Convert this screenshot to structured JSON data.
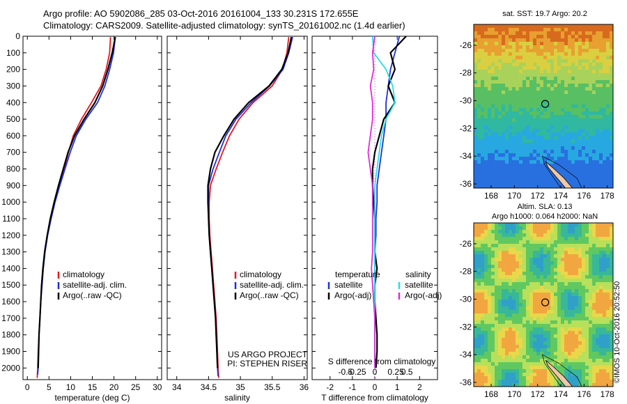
{
  "header": {
    "line1": "Argo profile: AO 5902086_285 03-Oct-2016 20161004_133 30.231S 172.655E",
    "line2": "Climatology: CARS2009. Satellite-adjusted climatology: synTS_20161002.nc (1.4d earlier)"
  },
  "colors": {
    "clim": "#e8141e",
    "sat": "#1f2fd8",
    "argo": "#000000",
    "sat_sal": "#22e0e6",
    "argo_sal": "#e02ad8"
  },
  "chart_data": [
    {
      "type": "line",
      "id": "temperature",
      "xlabel": "temperature (deg C)",
      "xlim": [
        -1,
        31
      ],
      "xticks": [
        0,
        5,
        10,
        15,
        20,
        25,
        30
      ],
      "ylim": [
        0,
        2070
      ],
      "yticks": [
        0,
        100,
        200,
        300,
        400,
        500,
        600,
        700,
        800,
        900,
        1000,
        1100,
        1200,
        1300,
        1400,
        1500,
        1600,
        1700,
        1800,
        1900,
        2000
      ],
      "legend": [
        "climatology",
        "satellite-adj. clim.",
        "Argo(..raw -QC)"
      ],
      "series": [
        {
          "name": "climatology",
          "color": "clim",
          "x": [
            19.2,
            19.0,
            18.2,
            17.0,
            14.8,
            12.5,
            10.6,
            9.5,
            8.5,
            7.3,
            6.3,
            5.4,
            4.6,
            4.0,
            3.6,
            3.3,
            3.1,
            2.9,
            2.7,
            2.5,
            2.4,
            2.3,
            2.3
          ],
          "y": [
            5,
            100,
            200,
            300,
            400,
            500,
            600,
            700,
            800,
            900,
            1000,
            1100,
            1200,
            1300,
            1400,
            1500,
            1600,
            1700,
            1800,
            1900,
            2000,
            2050,
            2060
          ]
        },
        {
          "name": "satellite-adj. clim.",
          "color": "sat",
          "x": [
            20.3,
            19.9,
            19.0,
            17.9,
            16.2,
            13.5,
            11.3,
            9.9,
            8.7,
            7.5,
            6.4,
            5.5,
            4.7,
            4.1,
            3.7,
            3.4,
            3.1,
            2.9,
            2.7,
            2.6,
            2.5,
            2.4
          ],
          "y": [
            5,
            100,
            200,
            300,
            400,
            500,
            600,
            700,
            800,
            900,
            1000,
            1100,
            1200,
            1300,
            1400,
            1500,
            1600,
            1700,
            1800,
            1900,
            2000,
            2040
          ]
        },
        {
          "name": "Argo(..raw -QC)",
          "color": "argo",
          "x": [
            20.3,
            19.6,
            18.6,
            17.4,
            15.6,
            13.1,
            10.9,
            9.4,
            8.3,
            7.2,
            6.2,
            5.3,
            4.6,
            4.0,
            3.6,
            3.3,
            3.1,
            2.9,
            2.7,
            2.6,
            2.5
          ],
          "y": [
            5,
            100,
            200,
            300,
            400,
            500,
            600,
            700,
            800,
            900,
            1000,
            1100,
            1200,
            1300,
            1400,
            1500,
            1600,
            1700,
            1800,
            1900,
            2000
          ]
        }
      ]
    },
    {
      "type": "line",
      "id": "salinity",
      "xlabel": "salinity",
      "xlim": [
        33.85,
        36.05
      ],
      "xticks": [
        34,
        34.5,
        35,
        35.5,
        36
      ],
      "ylim": [
        0,
        2070
      ],
      "legend": [
        "climatology",
        "satellite-adj. clim.",
        "Argo(..raw -QC)"
      ],
      "series": [
        {
          "name": "climatology",
          "color": "clim",
          "x": [
            35.76,
            35.73,
            35.66,
            35.5,
            35.2,
            34.98,
            34.83,
            34.72,
            34.62,
            34.53,
            34.51,
            34.51,
            34.52,
            34.54,
            34.56,
            34.58,
            34.6,
            34.62,
            34.63,
            34.64,
            34.65,
            34.66
          ],
          "y": [
            5,
            100,
            200,
            300,
            400,
            500,
            600,
            700,
            800,
            900,
            1000,
            1100,
            1200,
            1300,
            1400,
            1500,
            1600,
            1700,
            1800,
            1900,
            2000,
            2060
          ]
        },
        {
          "name": "satellite-adj. clim.",
          "color": "sat",
          "x": [
            35.82,
            35.76,
            35.67,
            35.46,
            35.17,
            34.93,
            34.77,
            34.67,
            34.57,
            34.5,
            34.5,
            34.5,
            34.51,
            34.53,
            34.55,
            34.57,
            34.59,
            34.61,
            34.62,
            34.63,
            34.64,
            34.65
          ],
          "y": [
            5,
            100,
            200,
            300,
            400,
            500,
            600,
            700,
            800,
            900,
            1000,
            1100,
            1200,
            1300,
            1400,
            1500,
            1600,
            1700,
            1800,
            1900,
            2000,
            2050
          ]
        },
        {
          "name": "Argo(..raw -QC)",
          "color": "argo",
          "x": [
            35.8,
            35.75,
            35.65,
            35.45,
            35.13,
            34.9,
            34.74,
            34.6,
            34.53,
            34.49,
            34.49,
            34.5,
            34.51,
            34.53,
            34.55,
            34.57,
            34.59,
            34.61,
            34.62,
            34.63,
            34.64
          ],
          "y": [
            5,
            100,
            200,
            300,
            400,
            500,
            600,
            700,
            800,
            900,
            1000,
            1100,
            1200,
            1300,
            1400,
            1500,
            1600,
            1700,
            1800,
            1900,
            2000
          ]
        }
      ],
      "annotation": [
        "US ARGO PROJECT",
        "PI: STEPHEN RISER"
      ]
    },
    {
      "type": "line",
      "id": "difference",
      "xlabel": "T difference from climatology",
      "xlabel_top": "S difference from climatology",
      "xlim": [
        -2.8,
        2.8
      ],
      "xticks": [
        -2,
        -1,
        0,
        1,
        2
      ],
      "xticks_top": [
        "-0.5",
        "-0.25",
        "0",
        "0.25",
        "0.5"
      ],
      "ylim": [
        0,
        2070
      ],
      "legend_left_title": "temperature",
      "legend_right_title": "salinity",
      "legend": [
        "satellite",
        "Argo(-adj)",
        "satellite",
        "Argo(-adj)"
      ],
      "series": [
        {
          "name": "temperature satellite",
          "color": "sat",
          "x": [
            1.1,
            0.9,
            0.7,
            0.6,
            0.5,
            0.5,
            0.4,
            0.3,
            0.2,
            0.1,
            0.1,
            0.05,
            0.05,
            0,
            0,
            0,
            0,
            0,
            0,
            0,
            0
          ],
          "y": [
            0,
            100,
            200,
            300,
            400,
            500,
            600,
            700,
            800,
            900,
            1000,
            1100,
            1200,
            1300,
            1400,
            1500,
            1600,
            1700,
            1800,
            1900,
            2000
          ]
        },
        {
          "name": "temperature Argo(-adj)",
          "color": "argo",
          "x": [
            1.4,
            0.7,
            0.9,
            0.6,
            0.9,
            0.4,
            0.2,
            0.0,
            -0.1,
            -0.1,
            -0.05,
            0,
            0,
            0,
            0.1,
            0,
            0,
            0.05,
            0.1,
            0.1,
            0.05
          ],
          "y": [
            0,
            100,
            200,
            300,
            400,
            500,
            600,
            700,
            800,
            900,
            1000,
            1100,
            1200,
            1300,
            1400,
            1500,
            1600,
            1700,
            1800,
            1900,
            2000
          ]
        },
        {
          "name": "salinity satellite",
          "color": "sat_sal",
          "x": [
            -0.1,
            -0.05,
            0.5,
            0.8,
            0.9,
            0.5,
            0.3,
            0.2,
            0.1,
            0,
            0,
            0,
            0,
            0,
            0,
            0,
            0,
            0,
            0,
            0,
            0
          ],
          "y": [
            0,
            100,
            200,
            300,
            400,
            500,
            600,
            700,
            800,
            900,
            1000,
            1100,
            1200,
            1300,
            1400,
            1500,
            1600,
            1700,
            1800,
            1900,
            2000
          ]
        },
        {
          "name": "salinity Argo(-adj)",
          "color": "argo_sal",
          "x": [
            0.0,
            -0.1,
            -0.05,
            -0.2,
            -0.1,
            -0.1,
            -0.2,
            -0.3,
            -0.2,
            -0.1,
            -0.1,
            -0.1,
            -0.1,
            -0.1,
            -0.15,
            -0.1,
            -0.05,
            0,
            0,
            0,
            0
          ],
          "y": [
            0,
            100,
            200,
            300,
            400,
            500,
            600,
            700,
            800,
            900,
            1000,
            1100,
            1200,
            1300,
            1400,
            1500,
            1600,
            1700,
            1800,
            1900,
            2000
          ]
        }
      ]
    },
    {
      "type": "heatmap",
      "id": "sst-map",
      "title": "sat. SST: 19.7  Argo: 20.2",
      "xlim": [
        166.5,
        178.5
      ],
      "xticks": [
        168,
        170,
        172,
        174,
        176,
        178
      ],
      "ylim": [
        -36.3,
        -24.5
      ],
      "yticks": [
        -26,
        -28,
        -30,
        -32,
        -34,
        -36
      ],
      "marker": {
        "lon": 172.655,
        "lat": -30.231
      }
    },
    {
      "type": "heatmap",
      "id": "sla-map",
      "title": "Altim. SLA: 0.13",
      "subtitle": "Argo h1000: 0.064 h2000: NaN",
      "xlim": [
        166.5,
        178.5
      ],
      "xticks": [
        168,
        170,
        172,
        174,
        176,
        178
      ],
      "ylim": [
        -36.3,
        -24.5
      ],
      "yticks": [
        -26,
        -28,
        -30,
        -32,
        -34,
        -36
      ],
      "marker": {
        "lon": 172.655,
        "lat": -30.231
      }
    }
  ],
  "stamp": "©IMOS 10-Oct-2016 20:52:50"
}
